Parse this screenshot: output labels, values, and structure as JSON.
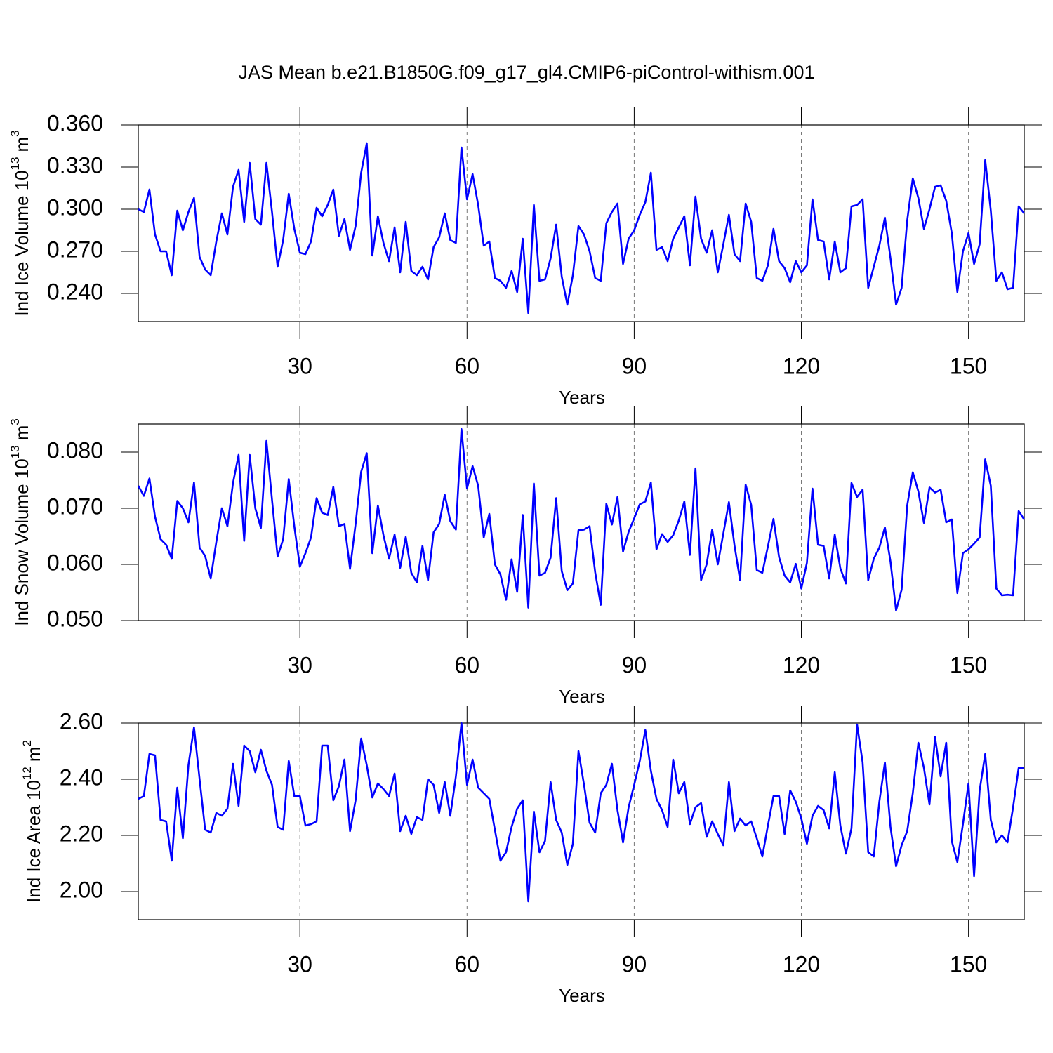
{
  "title": "JAS Mean b.e21.B1850G.f09_g17_gl4.CMIP6-piControl-withism.001",
  "chart_data": [
    {
      "type": "line",
      "xlabel": "Years",
      "ylabel": [
        "Ind Ice Volume 10",
        "13",
        "m",
        "3"
      ],
      "color": "#0000ff",
      "grid": "x",
      "xlim": [
        1,
        160
      ],
      "xticks": [
        30,
        60,
        90,
        120,
        150
      ],
      "ylim": [
        0.22,
        0.36
      ],
      "yticks": [
        {
          "value": 0.24,
          "label": "0.240"
        },
        {
          "value": 0.27,
          "label": "0.270"
        },
        {
          "value": 0.3,
          "label": "0.300"
        },
        {
          "value": 0.33,
          "label": "0.330"
        },
        {
          "value": 0.36,
          "label": "0.360"
        }
      ],
      "x": [
        1,
        2,
        3,
        4,
        5,
        6,
        7,
        8,
        9,
        10,
        11,
        12,
        13,
        14,
        15,
        16,
        17,
        18,
        19,
        20,
        21,
        22,
        23,
        24,
        25,
        26,
        27,
        28,
        29,
        30,
        31,
        32,
        33,
        34,
        35,
        36,
        37,
        38,
        39,
        40,
        41,
        42,
        43,
        44,
        45,
        46,
        47,
        48,
        49,
        50,
        51,
        52,
        53,
        54,
        55,
        56,
        57,
        58,
        59,
        60,
        61,
        62,
        63,
        64,
        65,
        66,
        67,
        68,
        69,
        70,
        71,
        72,
        73,
        74,
        75,
        76,
        77,
        78,
        79,
        80,
        81,
        82,
        83,
        84,
        85,
        86,
        87,
        88,
        89,
        90,
        91,
        92,
        93,
        94,
        95,
        96,
        97,
        98,
        99,
        100,
        101,
        102,
        103,
        104,
        105,
        106,
        107,
        108,
        109,
        110,
        111,
        112,
        113,
        114,
        115,
        116,
        117,
        118,
        119,
        120,
        121,
        122,
        123,
        124,
        125,
        126,
        127,
        128,
        129,
        130,
        131,
        132,
        133,
        134,
        135,
        136,
        137,
        138,
        139,
        140,
        141,
        142,
        143,
        144,
        145,
        146,
        147,
        148,
        149,
        150,
        151,
        152,
        153,
        154,
        155,
        156,
        157,
        158,
        159,
        160
      ],
      "values": [
        0.3,
        0.298,
        0.314,
        0.282,
        0.27,
        0.27,
        0.253,
        0.299,
        0.285,
        0.298,
        0.308,
        0.266,
        0.257,
        0.253,
        0.277,
        0.297,
        0.282,
        0.316,
        0.328,
        0.291,
        0.333,
        0.293,
        0.289,
        0.333,
        0.298,
        0.259,
        0.278,
        0.311,
        0.286,
        0.269,
        0.268,
        0.277,
        0.301,
        0.295,
        0.303,
        0.314,
        0.281,
        0.293,
        0.271,
        0.288,
        0.326,
        0.347,
        0.267,
        0.295,
        0.276,
        0.263,
        0.287,
        0.255,
        0.291,
        0.256,
        0.253,
        0.259,
        0.25,
        0.273,
        0.28,
        0.297,
        0.278,
        0.276,
        0.344,
        0.307,
        0.325,
        0.303,
        0.274,
        0.277,
        0.251,
        0.249,
        0.244,
        0.256,
        0.241,
        0.279,
        0.226,
        0.303,
        0.249,
        0.25,
        0.265,
        0.289,
        0.252,
        0.232,
        0.253,
        0.288,
        0.282,
        0.27,
        0.251,
        0.249,
        0.29,
        0.298,
        0.304,
        0.261,
        0.279,
        0.285,
        0.296,
        0.305,
        0.326,
        0.271,
        0.273,
        0.263,
        0.279,
        0.287,
        0.295,
        0.26,
        0.309,
        0.279,
        0.269,
        0.285,
        0.255,
        0.275,
        0.296,
        0.268,
        0.263,
        0.304,
        0.291,
        0.251,
        0.249,
        0.26,
        0.286,
        0.263,
        0.258,
        0.248,
        0.263,
        0.255,
        0.26,
        0.307,
        0.278,
        0.277,
        0.25,
        0.277,
        0.255,
        0.258,
        0.302,
        0.303,
        0.307,
        0.244,
        0.259,
        0.274,
        0.294,
        0.265,
        0.232,
        0.244,
        0.292,
        0.322,
        0.308,
        0.286,
        0.3,
        0.316,
        0.317,
        0.306,
        0.283,
        0.241,
        0.27,
        0.283,
        0.261,
        0.275,
        0.335,
        0.299,
        0.249,
        0.255,
        0.243,
        0.244,
        0.302,
        0.297
      ]
    },
    {
      "type": "line",
      "xlabel": "Years",
      "ylabel": [
        "Ind Snow Volume 10",
        "13",
        "m",
        "3"
      ],
      "color": "#0000ff",
      "grid": "x",
      "xlim": [
        1,
        160
      ],
      "xticks": [
        30,
        60,
        90,
        120,
        150
      ],
      "ylim": [
        0.05,
        0.085
      ],
      "yticks": [
        {
          "value": 0.05,
          "label": "0.050"
        },
        {
          "value": 0.06,
          "label": "0.060"
        },
        {
          "value": 0.07,
          "label": "0.070"
        },
        {
          "value": 0.08,
          "label": "0.080"
        }
      ],
      "x": [
        1,
        2,
        3,
        4,
        5,
        6,
        7,
        8,
        9,
        10,
        11,
        12,
        13,
        14,
        15,
        16,
        17,
        18,
        19,
        20,
        21,
        22,
        23,
        24,
        25,
        26,
        27,
        28,
        29,
        30,
        31,
        32,
        33,
        34,
        35,
        36,
        37,
        38,
        39,
        40,
        41,
        42,
        43,
        44,
        45,
        46,
        47,
        48,
        49,
        50,
        51,
        52,
        53,
        54,
        55,
        56,
        57,
        58,
        59,
        60,
        61,
        62,
        63,
        64,
        65,
        66,
        67,
        68,
        69,
        70,
        71,
        72,
        73,
        74,
        75,
        76,
        77,
        78,
        79,
        80,
        81,
        82,
        83,
        84,
        85,
        86,
        87,
        88,
        89,
        90,
        91,
        92,
        93,
        94,
        95,
        96,
        97,
        98,
        99,
        100,
        101,
        102,
        103,
        104,
        105,
        106,
        107,
        108,
        109,
        110,
        111,
        112,
        113,
        114,
        115,
        116,
        117,
        118,
        119,
        120,
        121,
        122,
        123,
        124,
        125,
        126,
        127,
        128,
        129,
        130,
        131,
        132,
        133,
        134,
        135,
        136,
        137,
        138,
        139,
        140,
        141,
        142,
        143,
        144,
        145,
        146,
        147,
        148,
        149,
        150,
        151,
        152,
        153,
        154,
        155,
        156,
        157,
        158,
        159,
        160
      ],
      "values": [
        0.074,
        0.0722,
        0.0753,
        0.0685,
        0.0645,
        0.0635,
        0.061,
        0.0713,
        0.07,
        0.0675,
        0.0746,
        0.063,
        0.0615,
        0.0575,
        0.064,
        0.07,
        0.0668,
        0.0745,
        0.0795,
        0.0642,
        0.0795,
        0.07,
        0.0665,
        0.082,
        0.0715,
        0.0614,
        0.0645,
        0.0752,
        0.0668,
        0.0596,
        0.062,
        0.0648,
        0.0718,
        0.0692,
        0.0688,
        0.0738,
        0.0668,
        0.0672,
        0.0592,
        0.0672,
        0.0765,
        0.0798,
        0.062,
        0.0705,
        0.0652,
        0.061,
        0.0653,
        0.0594,
        0.0649,
        0.0585,
        0.0568,
        0.0633,
        0.0572,
        0.0657,
        0.0672,
        0.0724,
        0.0677,
        0.0662,
        0.0841,
        0.0735,
        0.0775,
        0.074,
        0.0648,
        0.069,
        0.06,
        0.0582,
        0.0537,
        0.0609,
        0.0551,
        0.0688,
        0.0523,
        0.0744,
        0.058,
        0.0585,
        0.0612,
        0.0718,
        0.0588,
        0.0554,
        0.0566,
        0.0661,
        0.0662,
        0.0668,
        0.0586,
        0.0528,
        0.0708,
        0.0671,
        0.072,
        0.0623,
        0.0658,
        0.0682,
        0.0707,
        0.0712,
        0.0746,
        0.0627,
        0.0654,
        0.064,
        0.0652,
        0.0678,
        0.0712,
        0.0617,
        0.0771,
        0.0572,
        0.06,
        0.0662,
        0.06,
        0.0655,
        0.0711,
        0.0634,
        0.0572,
        0.0742,
        0.0706,
        0.059,
        0.0585,
        0.0632,
        0.0681,
        0.0613,
        0.058,
        0.0568,
        0.0601,
        0.0557,
        0.0603,
        0.0735,
        0.0635,
        0.0633,
        0.0575,
        0.0653,
        0.0593,
        0.0566,
        0.0745,
        0.072,
        0.0733,
        0.0572,
        0.061,
        0.063,
        0.0666,
        0.0605,
        0.0518,
        0.0555,
        0.0705,
        0.0764,
        0.073,
        0.0674,
        0.0737,
        0.0728,
        0.0733,
        0.0675,
        0.068,
        0.0549,
        0.062,
        0.0627,
        0.0637,
        0.0648,
        0.0787,
        0.074,
        0.0557,
        0.0545,
        0.0546,
        0.0545,
        0.0695,
        0.068
      ]
    },
    {
      "type": "line",
      "xlabel": "Years",
      "ylabel": [
        "Ind Ice Area 10",
        "12",
        "m",
        "2"
      ],
      "color": "#0000ff",
      "grid": "x",
      "xlim": [
        1,
        160
      ],
      "xticks": [
        30,
        60,
        90,
        120,
        150
      ],
      "ylim": [
        1.9,
        2.6
      ],
      "yticks": [
        {
          "value": 2.0,
          "label": "2.00"
        },
        {
          "value": 2.2,
          "label": "2.20"
        },
        {
          "value": 2.4,
          "label": "2.40"
        },
        {
          "value": 2.6,
          "label": "2.60"
        }
      ],
      "x": [
        1,
        2,
        3,
        4,
        5,
        6,
        7,
        8,
        9,
        10,
        11,
        12,
        13,
        14,
        15,
        16,
        17,
        18,
        19,
        20,
        21,
        22,
        23,
        24,
        25,
        26,
        27,
        28,
        29,
        30,
        31,
        32,
        33,
        34,
        35,
        36,
        37,
        38,
        39,
        40,
        41,
        42,
        43,
        44,
        45,
        46,
        47,
        48,
        49,
        50,
        51,
        52,
        53,
        54,
        55,
        56,
        57,
        58,
        59,
        60,
        61,
        62,
        63,
        64,
        65,
        66,
        67,
        68,
        69,
        70,
        71,
        72,
        73,
        74,
        75,
        76,
        77,
        78,
        79,
        80,
        81,
        82,
        83,
        84,
        85,
        86,
        87,
        88,
        89,
        90,
        91,
        92,
        93,
        94,
        95,
        96,
        97,
        98,
        99,
        100,
        101,
        102,
        103,
        104,
        105,
        106,
        107,
        108,
        109,
        110,
        111,
        112,
        113,
        114,
        115,
        116,
        117,
        118,
        119,
        120,
        121,
        122,
        123,
        124,
        125,
        126,
        127,
        128,
        129,
        130,
        131,
        132,
        133,
        134,
        135,
        136,
        137,
        138,
        139,
        140,
        141,
        142,
        143,
        144,
        145,
        146,
        147,
        148,
        149,
        150,
        151,
        152,
        153,
        154,
        155,
        156,
        157,
        158,
        159,
        160
      ],
      "values": [
        2.33,
        2.34,
        2.49,
        2.485,
        2.255,
        2.25,
        2.11,
        2.37,
        2.19,
        2.45,
        2.585,
        2.4,
        2.22,
        2.21,
        2.28,
        2.27,
        2.295,
        2.455,
        2.305,
        2.52,
        2.5,
        2.425,
        2.505,
        2.43,
        2.38,
        2.23,
        2.22,
        2.465,
        2.34,
        2.34,
        2.235,
        2.24,
        2.25,
        2.52,
        2.52,
        2.325,
        2.375,
        2.47,
        2.215,
        2.325,
        2.545,
        2.45,
        2.335,
        2.385,
        2.365,
        2.34,
        2.42,
        2.215,
        2.27,
        2.205,
        2.265,
        2.255,
        2.4,
        2.38,
        2.28,
        2.39,
        2.27,
        2.41,
        2.6,
        2.38,
        2.47,
        2.37,
        2.35,
        2.33,
        2.22,
        2.11,
        2.14,
        2.23,
        2.295,
        2.325,
        1.965,
        2.285,
        2.14,
        2.18,
        2.39,
        2.255,
        2.21,
        2.095,
        2.17,
        2.5,
        2.38,
        2.245,
        2.21,
        2.35,
        2.38,
        2.455,
        2.29,
        2.175,
        2.3,
        2.38,
        2.465,
        2.575,
        2.43,
        2.33,
        2.29,
        2.23,
        2.47,
        2.35,
        2.39,
        2.24,
        2.3,
        2.315,
        2.195,
        2.25,
        2.205,
        2.165,
        2.39,
        2.215,
        2.26,
        2.235,
        2.25,
        2.19,
        2.125,
        2.235,
        2.34,
        2.34,
        2.205,
        2.36,
        2.32,
        2.26,
        2.17,
        2.27,
        2.305,
        2.29,
        2.225,
        2.425,
        2.235,
        2.135,
        2.225,
        2.595,
        2.46,
        2.14,
        2.125,
        2.32,
        2.46,
        2.23,
        2.09,
        2.165,
        2.215,
        2.35,
        2.53,
        2.44,
        2.31,
        2.55,
        2.41,
        2.53,
        2.18,
        2.105,
        2.24,
        2.385,
        2.055,
        2.36,
        2.49,
        2.255,
        2.175,
        2.2,
        2.175,
        2.3,
        2.44,
        2.44
      ]
    }
  ]
}
